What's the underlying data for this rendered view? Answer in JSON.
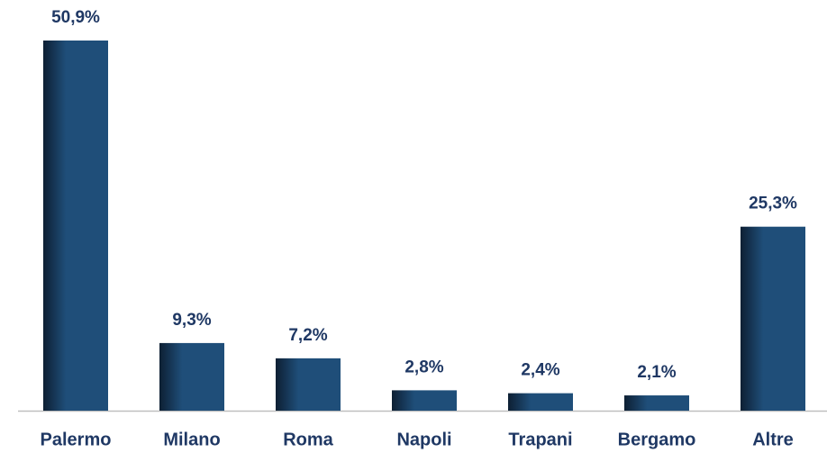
{
  "chart_data": {
    "type": "bar",
    "categories": [
      "Palermo",
      "Milano",
      "Roma",
      "Napoli",
      "Trapani",
      "Bergamo",
      "Altre"
    ],
    "values": [
      50.9,
      9.3,
      7.2,
      2.8,
      2.4,
      2.1,
      25.3
    ],
    "value_labels": [
      "50,9%",
      "9,3%",
      "7,2%",
      "2,8%",
      "2,4%",
      "2,1%",
      "25,3%"
    ],
    "color": "#1f4e79"
  }
}
